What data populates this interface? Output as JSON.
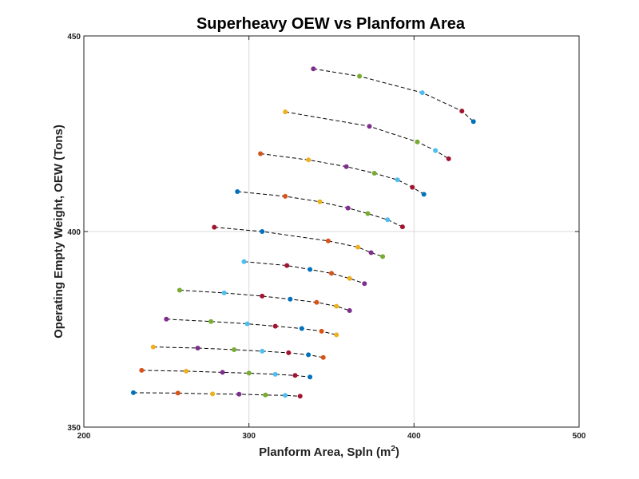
{
  "chart_data": {
    "type": "scatter",
    "title": "Superheavy OEW vs Planform Area",
    "xlabel": "Planform Area, Spln (m",
    "xlabel_sup": "2",
    "xlabel_end": ")",
    "ylabel": "Operating Empty Weight, OEW (Tons)",
    "xlim": [
      200,
      500
    ],
    "ylim": [
      350,
      450
    ],
    "xticks": [
      200,
      300,
      400,
      500
    ],
    "yticks": [
      350,
      400,
      450
    ],
    "grid": true,
    "palette": [
      "#0072BD",
      "#D95319",
      "#EDB120",
      "#7E2F8E",
      "#77AC30",
      "#4DBEEE",
      "#A2142F"
    ],
    "series": [
      {
        "points": [
          [
            230,
            358.8
          ],
          [
            257,
            358.7
          ],
          [
            278,
            358.5
          ],
          [
            294,
            358.4
          ],
          [
            310,
            358.2
          ],
          [
            322,
            358.1
          ],
          [
            331,
            357.9
          ]
        ]
      },
      {
        "points": [
          [
            235,
            364.5
          ],
          [
            262,
            364.3
          ],
          [
            284,
            364.0
          ],
          [
            300,
            363.8
          ],
          [
            316,
            363.5
          ],
          [
            328,
            363.2
          ],
          [
            337,
            362.8
          ]
        ]
      },
      {
        "points": [
          [
            242,
            370.5
          ],
          [
            269,
            370.2
          ],
          [
            291,
            369.8
          ],
          [
            308,
            369.4
          ],
          [
            324,
            369.0
          ],
          [
            336,
            368.5
          ],
          [
            345,
            367.8
          ]
        ]
      },
      {
        "points": [
          [
            250,
            377.6
          ],
          [
            277,
            377.0
          ],
          [
            299,
            376.4
          ],
          [
            316,
            375.8
          ],
          [
            332,
            375.2
          ],
          [
            344,
            374.5
          ],
          [
            353,
            373.6
          ]
        ]
      },
      {
        "points": [
          [
            258,
            385.0
          ],
          [
            285,
            384.3
          ],
          [
            308,
            383.5
          ],
          [
            325,
            382.7
          ],
          [
            341,
            381.9
          ],
          [
            353,
            380.9
          ],
          [
            361,
            379.8
          ]
        ]
      },
      {
        "points": [
          [
            297,
            392.3
          ],
          [
            323,
            391.3
          ],
          [
            337,
            390.3
          ],
          [
            350,
            389.3
          ],
          [
            361,
            388.0
          ],
          [
            370,
            386.7
          ]
        ]
      },
      {
        "points": [
          [
            279,
            401.1
          ],
          [
            308,
            400.0
          ],
          [
            348,
            397.6
          ],
          [
            366,
            396.0
          ],
          [
            374,
            394.6
          ],
          [
            381,
            393.6
          ]
        ]
      },
      {
        "points": [
          [
            293,
            410.2
          ],
          [
            322,
            409.0
          ],
          [
            343,
            407.6
          ],
          [
            360,
            406.0
          ],
          [
            372,
            404.6
          ],
          [
            384,
            403.0
          ],
          [
            393,
            401.2
          ]
        ]
      },
      {
        "points": [
          [
            307,
            419.9
          ],
          [
            336,
            418.3
          ],
          [
            359,
            416.6
          ],
          [
            376,
            414.9
          ],
          [
            390,
            413.2
          ],
          [
            399,
            411.3
          ],
          [
            406,
            409.5
          ]
        ]
      },
      {
        "points": [
          [
            322,
            430.6
          ],
          [
            373,
            426.9
          ],
          [
            402,
            422.9
          ],
          [
            413,
            420.7
          ],
          [
            421,
            418.6
          ]
        ]
      },
      {
        "points": [
          [
            339,
            441.6
          ],
          [
            367,
            439.7
          ],
          [
            405,
            435.5
          ],
          [
            429,
            430.8
          ],
          [
            436,
            428.1
          ]
        ]
      }
    ]
  }
}
